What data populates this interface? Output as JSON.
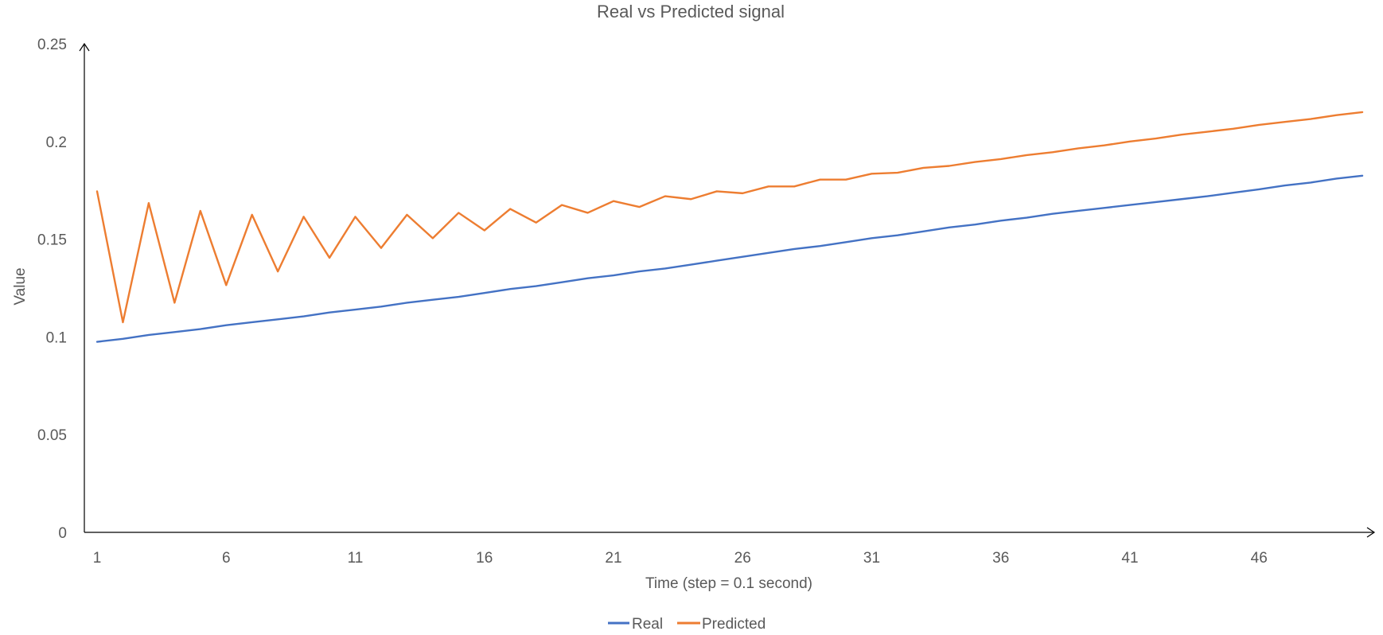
{
  "chart_data": {
    "type": "line",
    "title": "Real vs Predicted signal",
    "xlabel": "Time (step = 0.1 second)",
    "ylabel": "Value",
    "x": [
      1,
      2,
      3,
      4,
      5,
      6,
      7,
      8,
      9,
      10,
      11,
      12,
      13,
      14,
      15,
      16,
      17,
      18,
      19,
      20,
      21,
      22,
      23,
      24,
      25,
      26,
      27,
      28,
      29,
      30,
      31,
      32,
      33,
      34,
      35,
      36,
      37,
      38,
      39,
      40,
      41,
      42,
      43,
      44,
      45,
      46,
      47,
      48,
      49,
      50
    ],
    "x_tick_labels": [
      "1",
      "6",
      "11",
      "16",
      "21",
      "26",
      "31",
      "36",
      "41",
      "46"
    ],
    "y_tick_labels": [
      "0",
      "0.05",
      "0.1",
      "0.15",
      "0.2",
      "0.25"
    ],
    "ylim": [
      0,
      0.25
    ],
    "grid": false,
    "legend_position": "bottom",
    "series": [
      {
        "name": "Real",
        "color": "#4472C4",
        "values": [
          0.0975,
          0.099,
          0.101,
          0.1025,
          0.104,
          0.106,
          0.1075,
          0.109,
          0.1105,
          0.1125,
          0.114,
          0.1155,
          0.1175,
          0.119,
          0.1205,
          0.1225,
          0.1245,
          0.126,
          0.128,
          0.13,
          0.1315,
          0.1335,
          0.135,
          0.137,
          0.139,
          0.141,
          0.143,
          0.145,
          0.1465,
          0.1485,
          0.1505,
          0.152,
          0.154,
          0.156,
          0.1575,
          0.1595,
          0.161,
          0.163,
          0.1645,
          0.166,
          0.1675,
          0.169,
          0.1705,
          0.172,
          0.1738,
          0.1755,
          0.1775,
          0.179,
          0.181,
          0.1825
        ]
      },
      {
        "name": "Predicted",
        "color": "#ED7D31",
        "values": [
          0.1745,
          0.1075,
          0.1685,
          0.1175,
          0.1645,
          0.1265,
          0.1625,
          0.1335,
          0.1615,
          0.1405,
          0.1615,
          0.1455,
          0.1625,
          0.1505,
          0.1635,
          0.1545,
          0.1655,
          0.1585,
          0.1675,
          0.1635,
          0.1695,
          0.1665,
          0.172,
          0.1705,
          0.1745,
          0.1735,
          0.177,
          0.177,
          0.1805,
          0.1805,
          0.1835,
          0.184,
          0.1865,
          0.1875,
          0.1895,
          0.191,
          0.193,
          0.1945,
          0.1965,
          0.198,
          0.2,
          0.2015,
          0.2035,
          0.205,
          0.2065,
          0.2085,
          0.21,
          0.2115,
          0.2135,
          0.215
        ]
      }
    ]
  }
}
